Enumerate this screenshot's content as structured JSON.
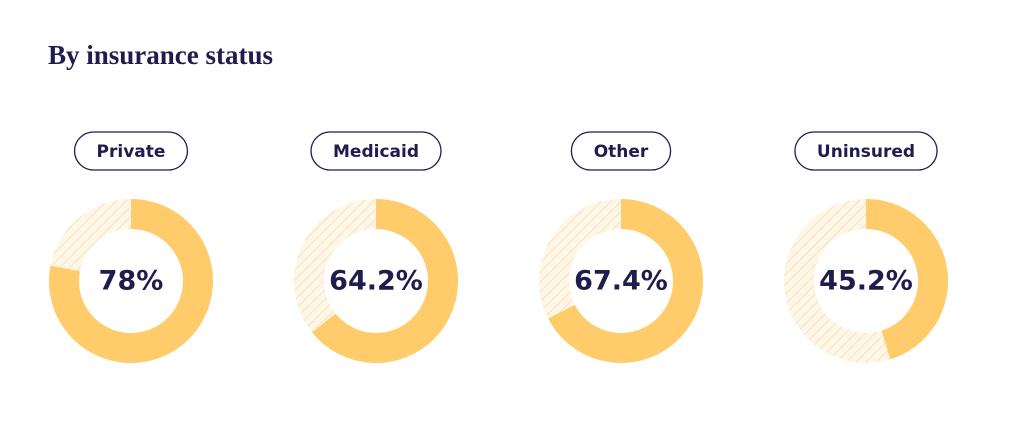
{
  "title": "By insurance status",
  "chart_data": [
    {
      "type": "donut",
      "title": "Private",
      "values": [
        78
      ],
      "value_labels": [
        "78%"
      ],
      "color": "#ffcb6b"
    },
    {
      "type": "donut",
      "title": "Medicaid",
      "values": [
        64.2
      ],
      "value_labels": [
        "64.2%"
      ],
      "color": "#ffcb6b"
    },
    {
      "type": "donut",
      "title": "Other",
      "values": [
        67.4
      ],
      "value_labels": [
        "67.4%"
      ],
      "color": "#ffcb6b"
    },
    {
      "type": "donut",
      "title": "Uninsured",
      "values": [
        45.2
      ],
      "value_labels": [
        "45.2%"
      ],
      "color": "#ffcb6b"
    }
  ]
}
